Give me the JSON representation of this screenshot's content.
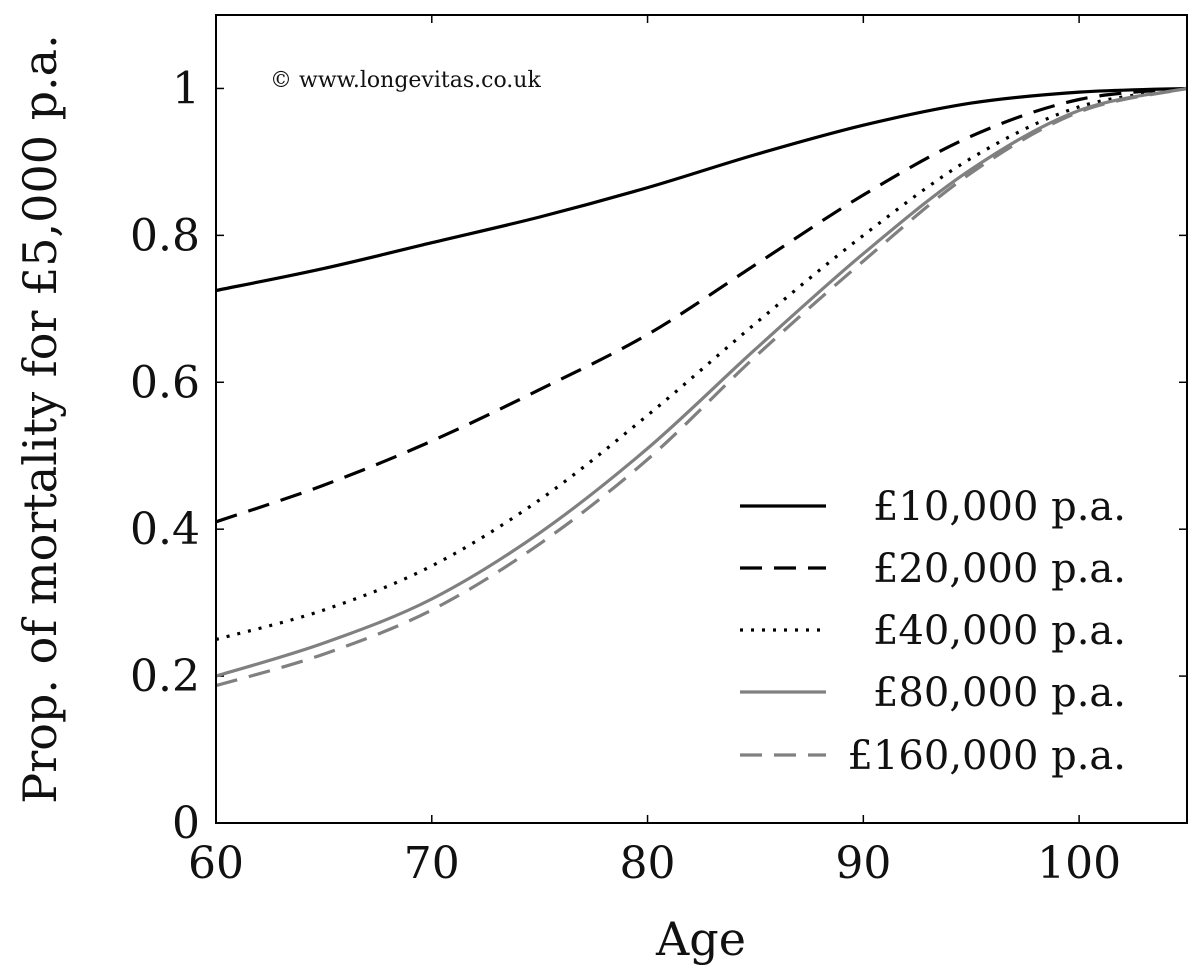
{
  "chart_data": {
    "type": "line",
    "title": "",
    "xlabel": "Age",
    "ylabel": "Prop. of mortality for £5,000 p.a.",
    "xlim": [
      60,
      105
    ],
    "ylim": [
      0,
      1.1
    ],
    "xticks": [
      60,
      70,
      80,
      90,
      100
    ],
    "xtick_labels": [
      "60",
      "70",
      "80",
      "90",
      "100"
    ],
    "yticks": [
      0,
      0.2,
      0.4,
      0.6,
      0.8,
      1
    ],
    "ytick_labels": [
      "0",
      "0.2",
      "0.4",
      "0.6",
      "0.8",
      "1"
    ],
    "grid": false,
    "legend_position": "bottom-right",
    "annotation": "© www.longevitas.co.uk",
    "x": [
      60,
      65,
      70,
      75,
      80,
      85,
      90,
      95,
      100,
      105
    ],
    "series": [
      {
        "name": "£10,000 p.a.",
        "color": "#000000",
        "dash": "solid",
        "values": [
          0.725,
          0.755,
          0.79,
          0.825,
          0.865,
          0.91,
          0.95,
          0.98,
          0.995,
          1.0
        ]
      },
      {
        "name": "£20,000 p.a.",
        "color": "#000000",
        "dash": "dashed",
        "values": [
          0.41,
          0.46,
          0.52,
          0.59,
          0.665,
          0.76,
          0.855,
          0.935,
          0.985,
          1.0
        ]
      },
      {
        "name": "£40,000 p.a.",
        "color": "#000000",
        "dash": "dotted",
        "values": [
          0.25,
          0.29,
          0.35,
          0.44,
          0.555,
          0.68,
          0.8,
          0.905,
          0.975,
          1.0
        ]
      },
      {
        "name": "£80,000 p.a.",
        "color": "#808080",
        "dash": "solid",
        "values": [
          0.2,
          0.245,
          0.305,
          0.395,
          0.51,
          0.645,
          0.775,
          0.89,
          0.97,
          1.0
        ]
      },
      {
        "name": "£160,000 p.a.",
        "color": "#808080",
        "dash": "dashed",
        "values": [
          0.187,
          0.23,
          0.29,
          0.38,
          0.495,
          0.635,
          0.765,
          0.885,
          0.968,
          1.0
        ]
      }
    ]
  }
}
